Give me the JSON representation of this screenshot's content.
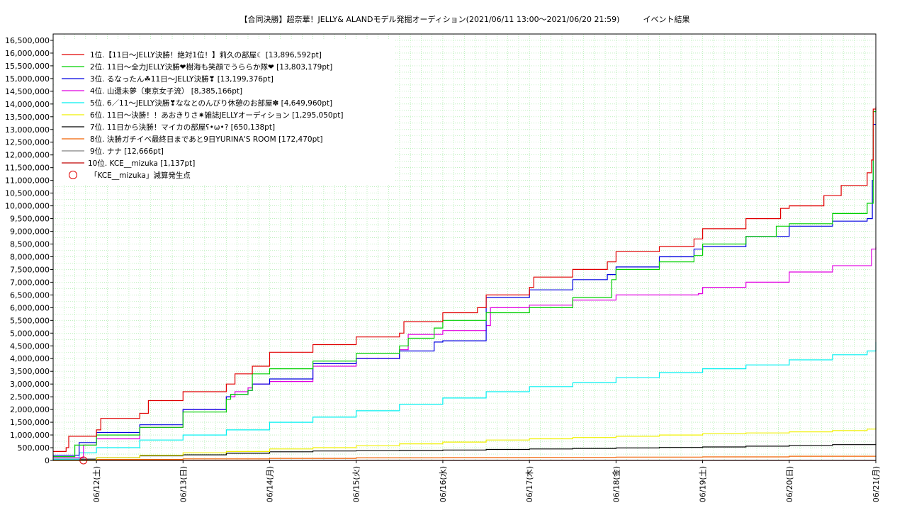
{
  "chart_data": {
    "type": "line",
    "title": "【合同決勝】超奈華！JELLY& ALANDモデル発掘オーディション(2021/06/11 13:00〜2021/06/20 21:59)　　　イベント結果",
    "xlabel": "",
    "ylabel": "",
    "x_ticks": [
      "06/12(土)",
      "06/13(日)",
      "06/14(月)",
      "06/15(火)",
      "06/16(水)",
      "06/17(木)",
      "06/18(金)",
      "06/19(土)",
      "06/20(日)",
      "06/21(月)"
    ],
    "y_ticks": [
      "0",
      "500,000",
      "1,000,000",
      "1,500,000",
      "2,000,000",
      "2,500,000",
      "3,000,000",
      "3,500,000",
      "4,000,000",
      "4,500,000",
      "5,000,000",
      "5,500,000",
      "6,000,000",
      "6,500,000",
      "7,000,000",
      "7,500,000",
      "8,000,000",
      "8,500,000",
      "9,000,000",
      "9,500,000",
      "10,000,000",
      "10,500,000",
      "11,000,000",
      "11,500,000",
      "12,000,000",
      "12,500,000",
      "13,000,000",
      "13,500,000",
      "14,000,000",
      "14,500,000",
      "15,000,000",
      "15,500,000",
      "16,000,000",
      "16,500,000"
    ],
    "xlim": [
      0.5,
      10.0
    ],
    "ylim": [
      0,
      16750000
    ],
    "grid": true,
    "legend_position": "top-left",
    "series": [
      {
        "name": "1位.【11日〜JELLY決勝！絶対1位！】莉久の部屋☾ [13,896,592pt]",
        "color": "#e00000",
        "points": [
          [
            0.5,
            350000
          ],
          [
            0.65,
            500000
          ],
          [
            0.68,
            950000
          ],
          [
            1.0,
            1200000
          ],
          [
            1.05,
            1650000
          ],
          [
            1.5,
            1850000
          ],
          [
            1.6,
            2350000
          ],
          [
            2.0,
            2700000
          ],
          [
            2.5,
            3000000
          ],
          [
            2.6,
            3400000
          ],
          [
            2.8,
            3700000
          ],
          [
            3.0,
            4250000
          ],
          [
            3.5,
            4550000
          ],
          [
            4.0,
            4850000
          ],
          [
            4.5,
            5000000
          ],
          [
            4.55,
            5450000
          ],
          [
            5.0,
            5800000
          ],
          [
            5.4,
            6000000
          ],
          [
            5.5,
            6500000
          ],
          [
            6.0,
            6800000
          ],
          [
            6.05,
            7200000
          ],
          [
            6.5,
            7500000
          ],
          [
            6.9,
            7800000
          ],
          [
            7.0,
            8200000
          ],
          [
            7.5,
            8400000
          ],
          [
            7.9,
            8700000
          ],
          [
            8.0,
            9100000
          ],
          [
            8.5,
            9500000
          ],
          [
            8.9,
            9900000
          ],
          [
            9.0,
            10000000
          ],
          [
            9.4,
            10400000
          ],
          [
            9.6,
            10800000
          ],
          [
            9.9,
            11300000
          ],
          [
            9.95,
            11800000
          ],
          [
            9.97,
            13800000
          ],
          [
            10.0,
            13896592
          ]
        ]
      },
      {
        "name": "2位. 11日〜全力JELLY決勝❤樹海も笑顔でうららか隊❤ [13,803,179pt]",
        "color": "#00d000",
        "points": [
          [
            0.5,
            150000
          ],
          [
            0.75,
            600000
          ],
          [
            1.0,
            1000000
          ],
          [
            1.5,
            1300000
          ],
          [
            2.0,
            1900000
          ],
          [
            2.5,
            2400000
          ],
          [
            2.55,
            2600000
          ],
          [
            2.75,
            2750000
          ],
          [
            2.8,
            3400000
          ],
          [
            3.0,
            3600000
          ],
          [
            3.5,
            3900000
          ],
          [
            4.0,
            4200000
          ],
          [
            4.5,
            4500000
          ],
          [
            4.6,
            4800000
          ],
          [
            4.9,
            5200000
          ],
          [
            5.0,
            5500000
          ],
          [
            5.5,
            5800000
          ],
          [
            6.0,
            6000000
          ],
          [
            6.5,
            6400000
          ],
          [
            6.95,
            7100000
          ],
          [
            7.0,
            7500000
          ],
          [
            7.5,
            7800000
          ],
          [
            7.9,
            8050000
          ],
          [
            8.0,
            8500000
          ],
          [
            8.5,
            8800000
          ],
          [
            8.85,
            9200000
          ],
          [
            9.0,
            9300000
          ],
          [
            9.5,
            9700000
          ],
          [
            9.9,
            10100000
          ],
          [
            9.97,
            13700000
          ],
          [
            10.0,
            13803179
          ]
        ]
      },
      {
        "name": "3位. るなったん☘11日〜JELLY決勝❣ [13,199,376pt]",
        "color": "#0000e0",
        "points": [
          [
            0.5,
            200000
          ],
          [
            0.8,
            700000
          ],
          [
            1.0,
            1100000
          ],
          [
            1.5,
            1400000
          ],
          [
            2.0,
            2000000
          ],
          [
            2.5,
            2500000
          ],
          [
            2.55,
            2600000
          ],
          [
            2.75,
            2750000
          ],
          [
            2.8,
            3000000
          ],
          [
            3.0,
            3200000
          ],
          [
            3.5,
            3800000
          ],
          [
            4.0,
            4000000
          ],
          [
            4.5,
            4300000
          ],
          [
            4.9,
            4650000
          ],
          [
            5.0,
            4700000
          ],
          [
            5.5,
            5000000
          ],
          [
            5.5,
            6400000
          ],
          [
            6.0,
            6700000
          ],
          [
            6.5,
            7100000
          ],
          [
            6.9,
            7300000
          ],
          [
            7.0,
            7600000
          ],
          [
            7.5,
            8000000
          ],
          [
            7.9,
            8300000
          ],
          [
            8.0,
            8400000
          ],
          [
            8.5,
            8800000
          ],
          [
            9.0,
            9200000
          ],
          [
            9.5,
            9400000
          ],
          [
            9.9,
            9500000
          ],
          [
            9.96,
            11000000
          ],
          [
            9.97,
            13200000
          ],
          [
            10.0,
            13199376
          ]
        ]
      },
      {
        "name": "4位. 山還未夢（東京女子流） [8,385,166pt]",
        "color": "#e000e0",
        "points": [
          [
            0.5,
            100000
          ],
          [
            0.85,
            600000
          ],
          [
            1.0,
            850000
          ],
          [
            1.5,
            1300000
          ],
          [
            2.0,
            2000000
          ],
          [
            2.5,
            2500000
          ],
          [
            2.6,
            2700000
          ],
          [
            2.75,
            2850000
          ],
          [
            2.8,
            3000000
          ],
          [
            3.0,
            3100000
          ],
          [
            3.5,
            3700000
          ],
          [
            4.0,
            4000000
          ],
          [
            4.5,
            4350000
          ],
          [
            4.6,
            4950000
          ],
          [
            5.0,
            5100000
          ],
          [
            5.5,
            5300000
          ],
          [
            5.55,
            6000000
          ],
          [
            6.0,
            6100000
          ],
          [
            6.5,
            6300000
          ],
          [
            7.0,
            6500000
          ],
          [
            7.5,
            6500000
          ],
          [
            7.95,
            6550000
          ],
          [
            8.0,
            6800000
          ],
          [
            8.5,
            7000000
          ],
          [
            9.0,
            7400000
          ],
          [
            9.5,
            7650000
          ],
          [
            9.9,
            7650000
          ],
          [
            9.95,
            8300000
          ],
          [
            10.0,
            8385166
          ]
        ]
      },
      {
        "name": "5位. 6／11〜JELLY決勝❣ななとのんびり休憩のお部屋✽ [4,649,960pt]",
        "color": "#00f0f0",
        "points": [
          [
            0.5,
            50000
          ],
          [
            0.8,
            300000
          ],
          [
            1.0,
            500000
          ],
          [
            1.5,
            800000
          ],
          [
            2.0,
            1000000
          ],
          [
            2.5,
            1200000
          ],
          [
            3.0,
            1500000
          ],
          [
            3.5,
            1700000
          ],
          [
            4.0,
            1950000
          ],
          [
            4.5,
            2200000
          ],
          [
            5.0,
            2450000
          ],
          [
            5.5,
            2700000
          ],
          [
            6.0,
            2900000
          ],
          [
            6.5,
            3050000
          ],
          [
            7.0,
            3250000
          ],
          [
            7.5,
            3450000
          ],
          [
            8.0,
            3600000
          ],
          [
            8.5,
            3750000
          ],
          [
            9.0,
            3950000
          ],
          [
            9.5,
            4150000
          ],
          [
            9.9,
            4300000
          ],
          [
            10.0,
            4649960
          ]
        ]
      },
      {
        "name": "6位. 11日〜決勝！！あおきりさ✷雑誌JELLYオーディション [1,295,050pt]",
        "color": "#f0f000",
        "points": [
          [
            0.5,
            0
          ],
          [
            1.0,
            100000
          ],
          [
            1.5,
            200000
          ],
          [
            2.0,
            300000
          ],
          [
            2.5,
            350000
          ],
          [
            3.0,
            450000
          ],
          [
            3.5,
            500000
          ],
          [
            4.0,
            580000
          ],
          [
            4.5,
            650000
          ],
          [
            5.0,
            720000
          ],
          [
            5.5,
            800000
          ],
          [
            6.0,
            850000
          ],
          [
            6.5,
            900000
          ],
          [
            7.0,
            950000
          ],
          [
            7.5,
            1000000
          ],
          [
            8.0,
            1050000
          ],
          [
            8.5,
            1080000
          ],
          [
            9.0,
            1120000
          ],
          [
            9.5,
            1170000
          ],
          [
            9.9,
            1230000
          ],
          [
            10.0,
            1295050
          ]
        ]
      },
      {
        "name": "7位. 11日から決勝！マイカの部屋ʕ•ω•? [650,138pt]",
        "color": "#000000",
        "points": [
          [
            0.5,
            50000
          ],
          [
            1.0,
            100000
          ],
          [
            1.5,
            180000
          ],
          [
            2.0,
            220000
          ],
          [
            2.5,
            280000
          ],
          [
            3.0,
            340000
          ],
          [
            3.5,
            370000
          ],
          [
            4.0,
            380000
          ],
          [
            4.5,
            390000
          ],
          [
            5.0,
            410000
          ],
          [
            5.5,
            430000
          ],
          [
            6.0,
            450000
          ],
          [
            6.5,
            470000
          ],
          [
            7.0,
            490000
          ],
          [
            7.5,
            510000
          ],
          [
            8.0,
            530000
          ],
          [
            8.5,
            560000
          ],
          [
            9.0,
            590000
          ],
          [
            9.5,
            620000
          ],
          [
            10.0,
            650138
          ]
        ]
      },
      {
        "name": "8位. 決勝ガチイベ最終日まであと9日YURINA'S ROOM [172,470pt]",
        "color": "#f06000",
        "points": [
          [
            0.5,
            0
          ],
          [
            1.0,
            40000
          ],
          [
            2.0,
            60000
          ],
          [
            3.0,
            80000
          ],
          [
            4.0,
            100000
          ],
          [
            5.0,
            110000
          ],
          [
            6.0,
            120000
          ],
          [
            7.0,
            130000
          ],
          [
            8.0,
            140000
          ],
          [
            9.0,
            165000
          ],
          [
            10.0,
            172470
          ]
        ]
      },
      {
        "name": "9位. ナナ [12,666pt]",
        "color": "#808080",
        "points": [
          [
            0.5,
            0
          ],
          [
            10.0,
            12666
          ]
        ]
      },
      {
        "name": "10位. KCE__mizuka [1,137pt]",
        "color": "#c00000",
        "points": [
          [
            0.5,
            0
          ],
          [
            10.0,
            1137
          ]
        ]
      }
    ],
    "markers": [
      {
        "label": "「KCE__mizuka」減算発生点",
        "x": 0.85,
        "y": 0,
        "color": "#e00000",
        "shape": "open-circle"
      }
    ]
  }
}
